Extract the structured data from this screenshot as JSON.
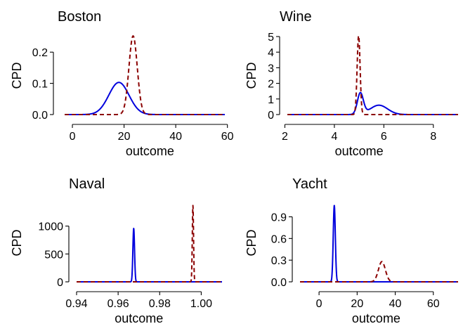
{
  "chart_data": [
    {
      "type": "line",
      "title": "Boston",
      "xlabel": "outcome",
      "ylabel": "CPD",
      "xlim": [
        -3,
        59
      ],
      "ylim": [
        0,
        0.25
      ],
      "xticks": [
        0,
        20,
        40,
        60
      ],
      "xtick_labels": [
        "0",
        "20",
        "40",
        "60"
      ],
      "yticks": [
        0.0,
        0.1,
        0.2
      ],
      "ytick_labels": [
        "0.0",
        "0.1",
        "0.2"
      ],
      "series": [
        {
          "color": "#0000dd",
          "dash": "solid",
          "dist": "normal",
          "mean": 18,
          "peak": 0.103,
          "sd": 3.9
        },
        {
          "color": "#8b0000",
          "dash": "dashed",
          "dist": "normal",
          "mean": 23.5,
          "peak": 0.252,
          "sd": 1.6
        }
      ]
    },
    {
      "type": "line",
      "title": "Wine",
      "xlabel": "outcome",
      "ylabel": "CPD",
      "xlim": [
        2.1,
        9
      ],
      "ylim": [
        0,
        5
      ],
      "xticks": [
        2,
        4,
        6,
        8
      ],
      "xtick_labels": [
        "2",
        "4",
        "6",
        "8"
      ],
      "yticks": [
        0,
        1,
        2,
        3,
        4,
        5
      ],
      "ytick_labels": [
        "0",
        "1",
        "2",
        "3",
        "4",
        "5"
      ],
      "series": [
        {
          "color": "#0000dd",
          "dash": "solid",
          "dist": "mixture",
          "components": [
            {
              "mean": 5.05,
              "peak": 1.35,
              "sd": 0.12
            },
            {
              "mean": 5.8,
              "peak": 0.6,
              "sd": 0.35
            }
          ]
        },
        {
          "color": "#8b0000",
          "dash": "dashed",
          "dist": "normal",
          "mean": 4.98,
          "peak": 5.05,
          "sd": 0.06
        }
      ]
    },
    {
      "type": "line",
      "title": "Naval",
      "xlabel": "outcome",
      "ylabel": "CPD",
      "xlim": [
        0.94,
        1.01
      ],
      "ylim": [
        0,
        1400
      ],
      "xticks": [
        0.94,
        0.96,
        0.98,
        1.0
      ],
      "xtick_labels": [
        "0.94",
        "0.96",
        "0.98",
        "1.00"
      ],
      "yticks": [
        0,
        500,
        1000
      ],
      "ytick_labels": [
        "0",
        "500",
        "1000"
      ],
      "series": [
        {
          "color": "#0000dd",
          "dash": "solid",
          "dist": "normal",
          "mean": 0.9675,
          "peak": 960,
          "sd": 0.0004
        },
        {
          "color": "#8b0000",
          "dash": "dashed",
          "dist": "normal",
          "mean": 0.996,
          "peak": 1370,
          "sd": 0.0003
        }
      ]
    },
    {
      "type": "line",
      "title": "Yacht",
      "xlabel": "outcome",
      "ylabel": "CPD",
      "xlim": [
        -10,
        73
      ],
      "ylim": [
        0,
        1.08
      ],
      "xticks": [
        0,
        20,
        40,
        60
      ],
      "xtick_labels": [
        "0",
        "20",
        "40",
        "60"
      ],
      "yticks": [
        0.0,
        0.3,
        0.6,
        0.9
      ],
      "ytick_labels": [
        "0.0",
        "0.3",
        "0.6",
        "0.9"
      ],
      "series": [
        {
          "color": "#0000dd",
          "dash": "solid",
          "dist": "normal",
          "mean": 8,
          "peak": 1.06,
          "sd": 0.55
        },
        {
          "color": "#8b0000",
          "dash": "dashed",
          "dist": "normal",
          "mean": 33,
          "peak": 0.28,
          "sd": 1.8
        }
      ]
    }
  ]
}
